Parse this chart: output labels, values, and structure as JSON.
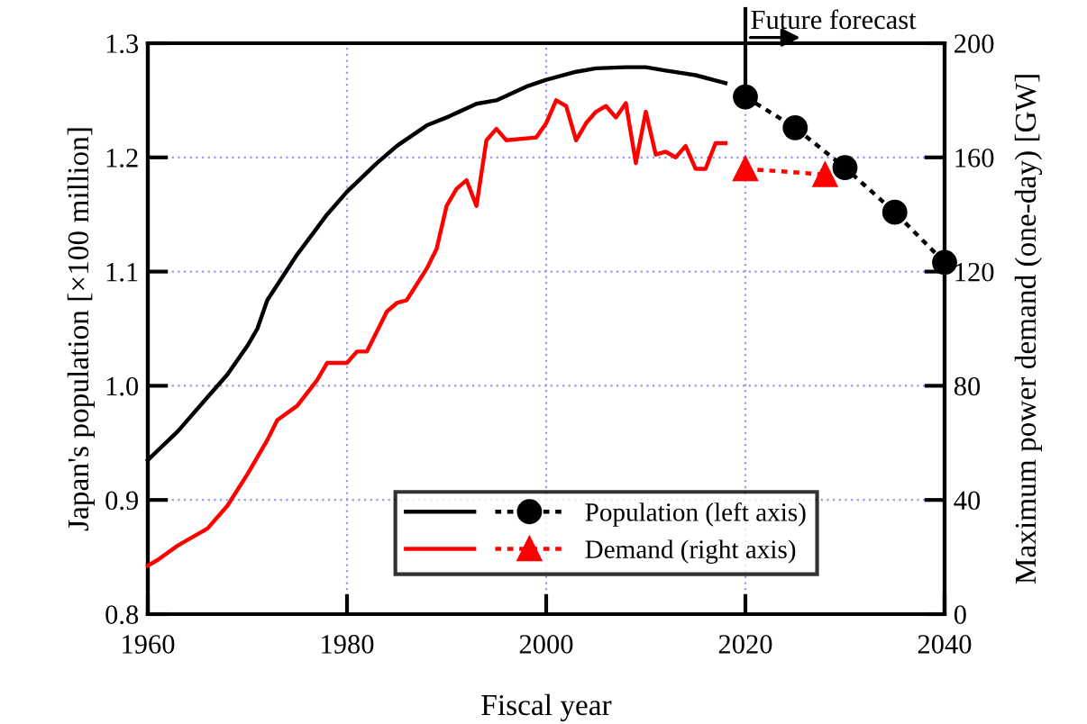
{
  "chart_data": {
    "type": "line",
    "xlabel": "Fiscal year",
    "ylabel": "Japan's population [×100 million]",
    "y2label": "Maximum power demand (one-day) [GW]",
    "xlim": [
      1960,
      2040
    ],
    "xticks": [
      1960,
      1980,
      2000,
      2020,
      2040
    ],
    "ylim": [
      0.8,
      1.3
    ],
    "yticks": [
      0.8,
      0.9,
      {
        "value": 1.0,
        "label": "1.0"
      },
      1.1,
      1.2,
      1.3
    ],
    "y2lim": [
      0,
      200
    ],
    "y2ticks": [
      0,
      40,
      80,
      120,
      160,
      200
    ],
    "grid": true,
    "legend": "bottom right",
    "ref_lines": [
      {
        "axis": "x",
        "value": 2020,
        "label": "Future forecast",
        "color": "#000000",
        "line_style": "solid"
      }
    ],
    "series": [
      {
        "color": "#000000",
        "line_style": "solid",
        "marker": "none",
        "x": [
          1960,
          1963,
          1966,
          1968,
          1970,
          1971,
          1972,
          1975,
          1978,
          1980,
          1983,
          1985,
          1988,
          1990,
          1993,
          1995,
          1998,
          2000,
          2003,
          2005,
          2008,
          2010,
          2012,
          2015,
          2018
        ],
        "values": [
          0.935,
          0.96,
          0.99,
          1.01,
          1.035,
          1.05,
          1.075,
          1.115,
          1.15,
          1.17,
          1.195,
          1.21,
          1.228,
          1.235,
          1.247,
          1.25,
          1.262,
          1.268,
          1.275,
          1.278,
          1.279,
          1.279,
          1.276,
          1.272,
          1.265
        ]
      },
      {
        "name": "Population (left axis)",
        "color": "#000000",
        "line_style": "dotted",
        "marker": "circle",
        "x": [
          2020,
          2025,
          2030,
          2035,
          2040
        ],
        "values": [
          1.253,
          1.226,
          1.191,
          1.152,
          1.108
        ]
      },
      {
        "color": "#ff0000",
        "line_style": "solid",
        "marker": "none",
        "axis": "y2",
        "x": [
          1960,
          1961,
          1963,
          1966,
          1968,
          1970,
          1972,
          1973,
          1975,
          1977,
          1978,
          1980,
          1981,
          1982,
          1984,
          1985,
          1986,
          1988,
          1989,
          1990,
          1991,
          1992,
          1993,
          1994,
          1995,
          1996,
          1999,
          2000,
          2001,
          2002,
          2003,
          2004,
          2005,
          2006,
          2007,
          2008,
          2009,
          2010,
          2011,
          2012,
          2013,
          2014,
          2015,
          2016,
          2017,
          2018
        ],
        "values": [
          17,
          19,
          24,
          30,
          38,
          49,
          61,
          68,
          73,
          82,
          88,
          88,
          92,
          92,
          106,
          109,
          110,
          121,
          128,
          143,
          149,
          152,
          143,
          166,
          170,
          166,
          167,
          172,
          180,
          178,
          166,
          172,
          176,
          178,
          174,
          179,
          158,
          176,
          161,
          162,
          160,
          164,
          156,
          156,
          165,
          165
        ]
      },
      {
        "name": "Demand (right axis)",
        "color": "#ff0000",
        "line_style": "dotted",
        "marker": "triangle",
        "axis": "y2",
        "x": [
          2020,
          2028
        ],
        "values": [
          156,
          154
        ]
      }
    ]
  }
}
